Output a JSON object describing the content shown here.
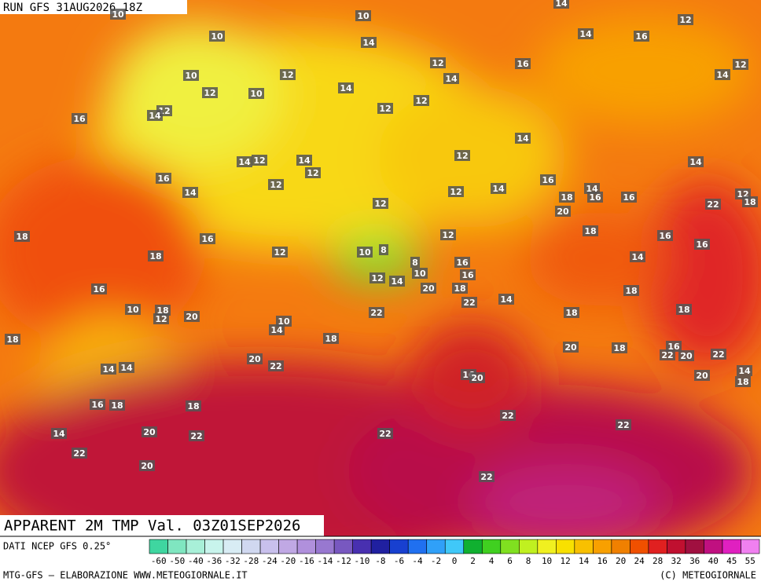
{
  "header": {
    "run": "RUN GFS 31AUG2026 18Z",
    "title": "APPARENT 2M TMP Val. 03Z01SEP2026"
  },
  "map": {
    "labels": [
      10,
      10,
      14,
      12,
      10,
      14,
      14,
      16,
      12,
      16,
      12,
      10,
      12,
      14,
      14,
      12,
      10,
      14,
      12,
      12,
      12,
      14,
      16,
      14,
      14,
      12,
      14,
      12,
      12,
      14,
      16,
      14,
      12,
      12,
      12,
      14,
      16,
      18,
      14,
      16,
      16,
      20,
      22,
      12,
      18,
      18,
      16,
      18,
      16,
      16,
      18,
      12,
      12,
      10,
      8,
      14,
      8,
      16,
      12,
      14,
      10,
      16,
      20,
      18,
      16,
      10,
      18,
      12,
      20,
      22,
      14,
      18,
      18,
      18,
      22,
      10,
      14,
      18,
      18,
      20,
      18,
      16,
      22,
      20,
      22,
      20,
      22,
      14,
      14,
      16,
      20,
      14,
      18,
      20,
      16,
      18,
      18,
      22,
      14,
      20,
      22,
      22,
      22,
      22,
      20,
      22
    ]
  },
  "legend": {
    "source": "DATI NCEP GFS 0.25°",
    "labels": [
      -60,
      -50,
      -40,
      -36,
      -32,
      -28,
      -24,
      -20,
      -16,
      -14,
      -12,
      -10,
      -8,
      -6,
      -4,
      -2,
      0,
      2,
      4,
      6,
      8,
      10,
      12,
      14,
      16,
      20,
      24,
      28,
      32,
      36,
      40,
      45,
      55
    ],
    "colors": [
      "#3fd6a0",
      "#7fe6c0",
      "#a8f0d8",
      "#c8f4ec",
      "#d8ecf4",
      "#d0d8f0",
      "#c8c0ec",
      "#c0a8e4",
      "#b090dc",
      "#9878d0",
      "#7858c0",
      "#4830b0",
      "#2020a0",
      "#1840d0",
      "#2070f0",
      "#30a0f8",
      "#40c8f8",
      "#10b030",
      "#40d020",
      "#80e020",
      "#c0f020",
      "#f0f020",
      "#f8e000",
      "#f8c000",
      "#f8a000",
      "#f08000",
      "#f05000",
      "#e02020",
      "#c01030",
      "#a01040",
      "#c01080",
      "#e020c0",
      "#f080f0"
    ]
  },
  "footer": {
    "left": "MTG-GFS — ELABORAZIONE WWW.METEOGIORNALE.IT",
    "right": "(C) METEOGIORNALE"
  }
}
